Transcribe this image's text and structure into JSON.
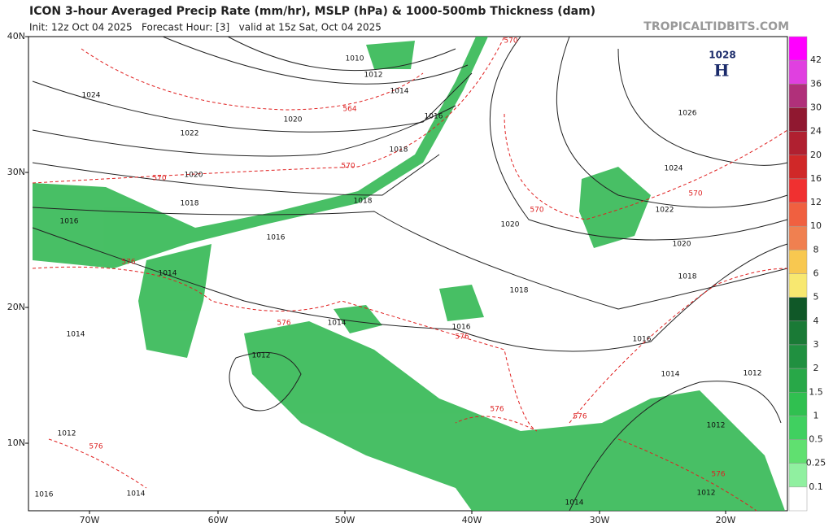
{
  "header": {
    "title": "ICON 3-hour Averaged Precip Rate (mm/hr), MSLP (hPa) & 1000-500mb Thickness (dam)",
    "init": "Init: 12z Oct 04 2025   Forecast Hour: [3]   valid at 15z Sat, Oct 04 2025",
    "site": "TROPICALTIDBITS.COM"
  },
  "map": {
    "lat_labels": [
      "40N",
      "30N",
      "20N",
      "10N"
    ],
    "lon_labels": [
      "70W",
      "60W",
      "50W",
      "40W",
      "30W",
      "20W"
    ],
    "isobar_labels": [
      "1010",
      "1012",
      "1014",
      "1016",
      "1018",
      "1018",
      "1016",
      "1014",
      "1024",
      "1022",
      "1020",
      "1020",
      "1018",
      "1016",
      "1020",
      "1018",
      "1016",
      "1014",
      "1012",
      "1014",
      "1026",
      "1024",
      "1022",
      "1020",
      "1018",
      "1016",
      "1014",
      "1012",
      "1012",
      "1012",
      "1014",
      "1012",
      "1016",
      "1014"
    ],
    "thickness_labels": [
      "570",
      "564",
      "570",
      "570",
      "570",
      "570",
      "576",
      "576",
      "576",
      "576",
      "576",
      "576",
      "576"
    ],
    "high": {
      "pressure": "1028",
      "letter": "H"
    }
  },
  "colorbar": {
    "labels": [
      "42",
      "36",
      "30",
      "24",
      "20",
      "16",
      "12",
      "10",
      "8",
      "6",
      "5",
      "4",
      "3",
      "2",
      "1.5",
      "1",
      "0.5",
      "0.25",
      "0.1"
    ],
    "colors": [
      "#f0f",
      "#e040e0",
      "#b0307a",
      "#901830",
      "#b02030",
      "#d02828",
      "#f03030",
      "#f06040",
      "#f08050",
      "#f8c850",
      "#f8e870",
      "#105828",
      "#1a7a36",
      "#209040",
      "#28a848",
      "#30c050",
      "#40d060",
      "#60e070",
      "#90f0a0",
      "#ffffff"
    ]
  }
}
